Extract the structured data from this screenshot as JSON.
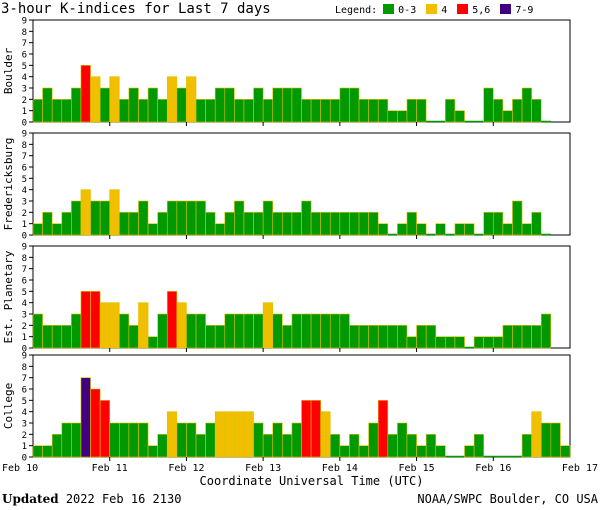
{
  "title": "3-hour K-indices for Last 7 days",
  "legend": {
    "label": "Legend:",
    "items": [
      {
        "label": "0-3",
        "color": "#009900"
      },
      {
        "label": "4",
        "color": "#f0c000"
      },
      {
        "label": "5,6",
        "color": "#ff0000"
      },
      {
        "label": "7-9",
        "color": "#400080"
      }
    ]
  },
  "footer": {
    "updated_label": "Updated",
    "updated_value": "2022 Feb 16 2130",
    "source": "NOAA/SWPC Boulder, CO USA"
  },
  "chart_data": {
    "type": "bar",
    "xlabel": "Coordinate Universal Time (UTC)",
    "x_ticks": [
      "Feb 10",
      "Feb 11",
      "Feb 12",
      "Feb 13",
      "Feb 14",
      "Feb 15",
      "Feb 16",
      "Feb 17"
    ],
    "y_ticks": [
      0,
      1,
      2,
      3,
      4,
      5,
      6,
      7,
      8,
      9
    ],
    "ylim": [
      0,
      9
    ],
    "bars_per_day": 8,
    "panels": [
      {
        "name": "Boulder",
        "values": [
          2,
          3,
          2,
          2,
          3,
          5,
          4,
          3,
          4,
          2,
          3,
          2,
          3,
          2,
          4,
          3,
          4,
          2,
          2,
          3,
          3,
          2,
          2,
          3,
          2,
          3,
          3,
          3,
          2,
          2,
          2,
          2,
          3,
          3,
          2,
          2,
          2,
          1,
          1,
          2,
          2,
          0,
          0,
          2,
          1,
          0,
          0,
          3,
          2,
          1,
          2,
          3,
          2,
          0
        ]
      },
      {
        "name": "Fredericksburg",
        "values": [
          1,
          2,
          1,
          2,
          3,
          4,
          3,
          3,
          4,
          2,
          2,
          3,
          1,
          2,
          3,
          3,
          3,
          3,
          2,
          1,
          2,
          3,
          2,
          2,
          3,
          2,
          2,
          2,
          3,
          2,
          2,
          2,
          2,
          2,
          2,
          2,
          1,
          0,
          1,
          2,
          1,
          0,
          1,
          0,
          1,
          1,
          0,
          2,
          2,
          1,
          3,
          1,
          2,
          0
        ]
      },
      {
        "name": "Est. Planetary",
        "values": [
          3,
          2,
          2,
          2,
          3,
          5,
          5,
          4,
          4,
          3,
          2,
          4,
          1,
          3,
          5,
          4,
          3,
          3,
          2,
          2,
          3,
          3,
          3,
          3,
          4,
          3,
          2,
          3,
          3,
          3,
          3,
          3,
          3,
          2,
          2,
          2,
          2,
          2,
          2,
          1,
          2,
          2,
          1,
          1,
          1,
          0,
          1,
          1,
          1,
          2,
          2,
          2,
          2,
          3
        ]
      },
      {
        "name": "College",
        "values": [
          1,
          1,
          2,
          3,
          3,
          7,
          6,
          5,
          3,
          3,
          3,
          3,
          1,
          2,
          4,
          3,
          3,
          2,
          3,
          4,
          4,
          4,
          4,
          3,
          2,
          3,
          2,
          3,
          5,
          5,
          4,
          2,
          1,
          2,
          1,
          3,
          5,
          2,
          3,
          2,
          1,
          2,
          1,
          0,
          0,
          1,
          2,
          0,
          0,
          0,
          0,
          2,
          4,
          3,
          3,
          1
        ]
      }
    ]
  }
}
